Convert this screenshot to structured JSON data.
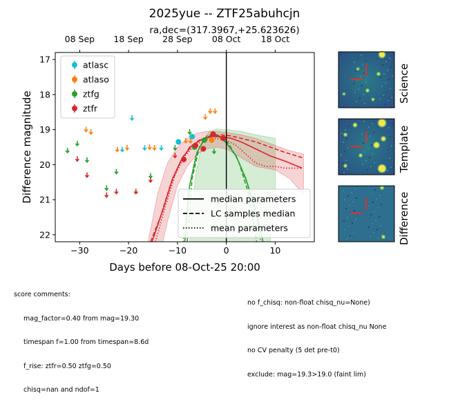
{
  "header": {
    "title": "2025yue -- ZTF25abuhcjn",
    "subtitle": "ra,dec=(317.3967,+25.623626)"
  },
  "colors": {
    "atlasc": "#17becf",
    "atlaso": "#ff7f0e",
    "ztfg": "#2ca02c",
    "ztfr": "#d62728"
  },
  "chart_data": {
    "type": "scatter",
    "xlabel": "Days before 08-Oct-25 20:00",
    "ylabel": "Difference magnitude",
    "xlim": [
      -35,
      18
    ],
    "ylim": [
      22.2,
      16.8
    ],
    "x_ticks": [
      -30,
      -20,
      -10,
      0,
      10
    ],
    "y_ticks": [
      17,
      18,
      19,
      20,
      21,
      22
    ],
    "top_axis_labels": [
      "08 Sep",
      "18 Sep",
      "28 Sep",
      "08 Oct",
      "18 Oct"
    ],
    "top_axis_positions": [
      -30,
      -20,
      -10,
      0,
      10
    ],
    "vline_x": 0,
    "legend_points": [
      "atlasc",
      "atlaso",
      "ztfg",
      "ztfr"
    ],
    "legend_lines": [
      "median parameters",
      "LC samples median",
      "mean parameters"
    ],
    "series": [
      {
        "name": "atlasc",
        "detections": [
          [
            -9.8,
            19.35,
            0.05
          ],
          [
            -7.0,
            19.2,
            0.05
          ]
        ],
        "upper_limits": [
          [
            -21.3,
            19.55
          ],
          [
            -19.3,
            18.65
          ],
          [
            -16.7,
            19.5
          ],
          [
            -13.3,
            19.5
          ]
        ]
      },
      {
        "name": "atlaso",
        "detections": [
          [
            -3.0,
            19.3,
            0.06
          ]
        ],
        "upper_limits": [
          [
            -28.7,
            18.98
          ],
          [
            -27.7,
            19.05
          ],
          [
            -22.3,
            19.55
          ],
          [
            -20.3,
            19.5
          ],
          [
            -15.7,
            19.48
          ],
          [
            -14.7,
            19.5
          ],
          [
            -8.3,
            19.3
          ],
          [
            -7.3,
            19.3
          ],
          [
            -4.3,
            18.62
          ],
          [
            -3.3,
            18.45
          ],
          [
            -2.3,
            18.45
          ]
        ]
      },
      {
        "name": "ztfg",
        "detections": [
          [
            -6.5,
            19.5,
            0.06
          ],
          [
            -4.5,
            19.3,
            0.05
          ]
        ],
        "upper_limits": [
          [
            -32.5,
            19.58
          ],
          [
            -30.5,
            19.38
          ],
          [
            -28.5,
            19.85
          ],
          [
            -24.5,
            20.65
          ],
          [
            -22.5,
            20.18
          ],
          [
            -18.5,
            20.75
          ],
          [
            -15.5,
            20.3
          ],
          [
            -10.5,
            19.5
          ],
          [
            -7.5,
            19.05
          ],
          [
            -2.5,
            19.6
          ]
        ]
      },
      {
        "name": "ztfr",
        "detections": [
          [
            -8.7,
            19.85,
            0.08
          ],
          [
            -6.3,
            19.45,
            0.06
          ],
          [
            -4.7,
            19.55,
            0.07
          ],
          [
            -2.7,
            19.13,
            0.06
          ],
          [
            -0.6,
            19.25,
            0.06
          ]
        ],
        "upper_limits": [
          [
            -30.5,
            19.82
          ],
          [
            -28.5,
            20.28
          ],
          [
            -24.5,
            20.85
          ],
          [
            -22.5,
            20.75
          ],
          [
            -18.5,
            20.75
          ],
          [
            -15.5,
            20.42
          ],
          [
            -10.5,
            19.72
          ]
        ]
      }
    ],
    "models": [
      {
        "name": "ztfg",
        "median": [
          [
            -8.5,
            22.2
          ],
          [
            -7.5,
            20.6
          ],
          [
            -6,
            19.65
          ],
          [
            -4.5,
            19.28
          ],
          [
            -3,
            19.15
          ],
          [
            -1.5,
            19.2
          ],
          [
            0,
            19.38
          ],
          [
            2,
            19.75
          ],
          [
            4,
            20.4
          ],
          [
            6,
            21.3
          ],
          [
            7.5,
            22.2
          ]
        ],
        "samples_median": [
          [
            -8,
            22.2
          ],
          [
            -7,
            20.4
          ],
          [
            -5.5,
            19.5
          ],
          [
            -4,
            19.18
          ],
          [
            -2.5,
            19.12
          ],
          [
            -1,
            19.2
          ],
          [
            0.5,
            19.4
          ],
          [
            2.5,
            19.9
          ],
          [
            4.5,
            20.8
          ],
          [
            6.2,
            22.2
          ]
        ],
        "mean": [
          [
            -8.8,
            22.2
          ],
          [
            -7.8,
            20.8
          ],
          [
            -6.3,
            19.75
          ],
          [
            -4.8,
            19.32
          ],
          [
            -3.2,
            19.15
          ],
          [
            -1.5,
            19.18
          ],
          [
            0.2,
            19.38
          ],
          [
            2.3,
            19.85
          ],
          [
            4.3,
            20.55
          ],
          [
            6.3,
            21.6
          ],
          [
            7,
            22.2
          ]
        ],
        "band_upper": [
          [
            -7.5,
            22.2
          ],
          [
            -6.3,
            20.3
          ],
          [
            -5,
            19.4
          ],
          [
            -3.5,
            19.05
          ],
          [
            -2,
            18.98
          ],
          [
            0,
            19.0
          ],
          [
            3,
            19.05
          ],
          [
            6,
            19.15
          ],
          [
            10,
            19.25
          ]
        ],
        "band_lower": [
          [
            10,
            21.0
          ],
          [
            9,
            22.2
          ],
          [
            -7.5,
            22.2
          ]
        ]
      },
      {
        "name": "ztfr",
        "median": [
          [
            -15.2,
            22.2
          ],
          [
            -13,
            21.3
          ],
          [
            -11,
            20.4
          ],
          [
            -9,
            19.8
          ],
          [
            -7,
            19.45
          ],
          [
            -5,
            19.28
          ],
          [
            -3,
            19.2
          ],
          [
            -1,
            19.2
          ],
          [
            1,
            19.25
          ],
          [
            3,
            19.35
          ],
          [
            6,
            19.55
          ],
          [
            9,
            19.75
          ],
          [
            12,
            19.9
          ],
          [
            15.5,
            20.1
          ]
        ],
        "samples_median": [
          [
            -15.5,
            22.2
          ],
          [
            -13.5,
            21.5
          ],
          [
            -11.5,
            20.6
          ],
          [
            -9.5,
            19.95
          ],
          [
            -7.5,
            19.5
          ],
          [
            -5.5,
            19.3
          ],
          [
            -3.5,
            19.2
          ],
          [
            -1,
            19.15
          ],
          [
            1,
            19.18
          ],
          [
            3,
            19.25
          ],
          [
            6,
            19.35
          ],
          [
            9,
            19.5
          ],
          [
            12,
            19.65
          ],
          [
            15.5,
            19.8
          ]
        ],
        "mean": [
          [
            -14.5,
            22.2
          ],
          [
            -12.5,
            21.2
          ],
          [
            -10.5,
            20.3
          ],
          [
            -8.5,
            19.75
          ],
          [
            -6.5,
            19.45
          ],
          [
            -4.5,
            19.3
          ],
          [
            -2.5,
            19.25
          ],
          [
            0,
            19.3
          ],
          [
            2,
            19.45
          ],
          [
            4,
            19.7
          ],
          [
            6,
            19.95
          ],
          [
            8,
            20.05
          ],
          [
            10,
            20.05
          ],
          [
            12,
            20.1
          ],
          [
            15.5,
            20.1
          ]
        ],
        "band_upper": [
          [
            -16,
            22.2
          ],
          [
            -14,
            20.8
          ],
          [
            -12,
            19.95
          ],
          [
            -10,
            19.5
          ],
          [
            -8,
            19.25
          ],
          [
            -6,
            19.1
          ],
          [
            -4,
            19.05
          ],
          [
            -2,
            19.05
          ],
          [
            0,
            19.08
          ],
          [
            3,
            19.15
          ],
          [
            6,
            19.25
          ],
          [
            10,
            19.45
          ],
          [
            13,
            19.6
          ],
          [
            15.8,
            19.7
          ]
        ],
        "band_lower": [
          [
            15.8,
            20.85
          ],
          [
            13,
            20.4
          ],
          [
            10,
            20.15
          ],
          [
            6,
            20.05
          ],
          [
            3,
            19.8
          ],
          [
            0,
            19.55
          ],
          [
            -2,
            19.5
          ],
          [
            -4,
            19.55
          ],
          [
            -6,
            19.7
          ],
          [
            -8,
            20.05
          ],
          [
            -10,
            20.6
          ],
          [
            -12,
            21.6
          ],
          [
            -13,
            22.2
          ]
        ]
      }
    ]
  },
  "thumbnails": [
    {
      "label": "Science"
    },
    {
      "label": "Template"
    },
    {
      "label": "Difference"
    }
  ],
  "comments": {
    "left_header": "score comments:",
    "left_lines": [
      "mag_factor=0.40 from mag=19.30",
      "timespan f=1.00 from timespan=8.6d",
      "f_rise: ztfr=0.50 ztfg=0.50",
      "chisq=nan and ndof=1"
    ],
    "right_lines": [
      "no f_chisq: non-float chisq_nu=None)",
      "ignore interest as non-float chisq_nu None",
      "no CV penalty (5 det pre-t0)",
      "exclude: mag=19.3>19.0 (faint lim)"
    ]
  }
}
